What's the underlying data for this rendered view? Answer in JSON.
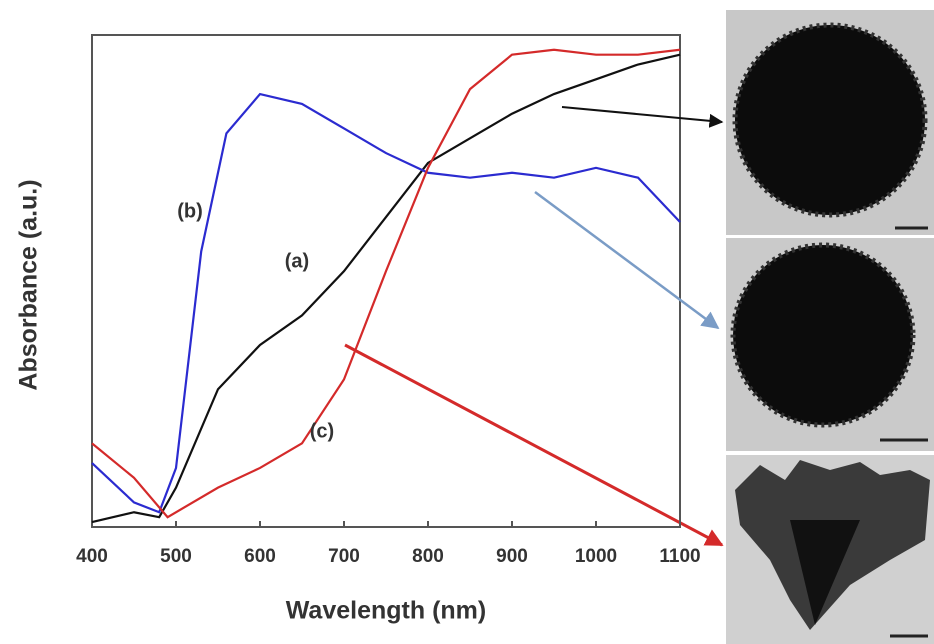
{
  "chart_data": {
    "type": "line",
    "x_label": "Wavelength (nm)",
    "y_label": "Absorbance (a.u.)",
    "xlim": [
      400,
      1100
    ],
    "xticks": [
      400,
      500,
      600,
      700,
      800,
      900,
      1000,
      1100
    ],
    "ylim": [
      0,
      1
    ],
    "series": [
      {
        "name": "(a)",
        "color": "#111111",
        "x": [
          400,
          450,
          480,
          500,
          550,
          600,
          650,
          700,
          750,
          800,
          850,
          900,
          950,
          1000,
          1050,
          1100
        ],
        "values": [
          0.01,
          0.03,
          0.02,
          0.08,
          0.28,
          0.37,
          0.43,
          0.52,
          0.63,
          0.74,
          0.79,
          0.84,
          0.88,
          0.91,
          0.94,
          0.96
        ]
      },
      {
        "name": "(b)",
        "color": "#2b2bd0",
        "x": [
          400,
          450,
          480,
          500,
          530,
          560,
          600,
          650,
          700,
          750,
          800,
          850,
          900,
          950,
          1000,
          1050,
          1100
        ],
        "values": [
          0.13,
          0.05,
          0.03,
          0.12,
          0.56,
          0.8,
          0.88,
          0.86,
          0.81,
          0.76,
          0.72,
          0.71,
          0.72,
          0.71,
          0.73,
          0.71,
          0.62
        ]
      },
      {
        "name": "(c)",
        "color": "#d42a2a",
        "x": [
          400,
          450,
          490,
          550,
          600,
          650,
          700,
          750,
          800,
          850,
          900,
          950,
          1000,
          1050,
          1100
        ],
        "values": [
          0.17,
          0.1,
          0.02,
          0.08,
          0.12,
          0.17,
          0.3,
          0.52,
          0.73,
          0.89,
          0.96,
          0.97,
          0.96,
          0.96,
          0.97
        ]
      }
    ]
  }
}
